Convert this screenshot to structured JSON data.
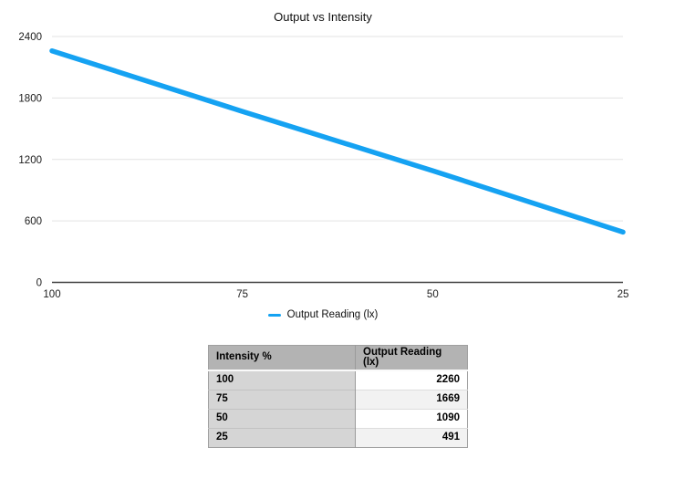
{
  "chart_data": {
    "type": "line",
    "title": "Output vs Intensity",
    "categories": [
      "100",
      "75",
      "50",
      "25"
    ],
    "x_axis_reversed": true,
    "series": [
      {
        "name": "Output Reading (lx)",
        "color": "#15a2f2",
        "values": [
          2260,
          1669,
          1090,
          491
        ]
      }
    ],
    "xlabel": "",
    "ylabel": "",
    "ylim": [
      0,
      2400
    ],
    "yticks": [
      0,
      600,
      1200,
      1800,
      2400
    ],
    "grid": true,
    "legend_position": "bottom"
  },
  "table": {
    "columns": [
      "Intensity %",
      "Output Reading (lx)"
    ],
    "rows": [
      [
        "100",
        "2260"
      ],
      [
        "75",
        "1669"
      ],
      [
        "50",
        "1090"
      ],
      [
        "25",
        "491"
      ]
    ]
  }
}
